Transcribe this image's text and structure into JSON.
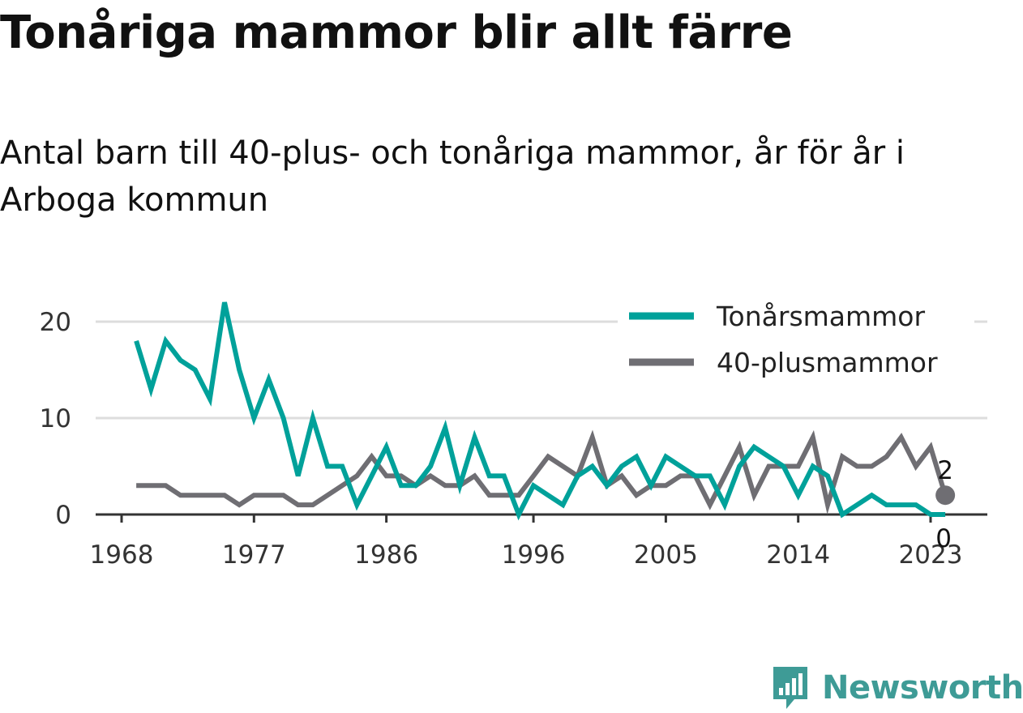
{
  "header": {
    "title": "Tonåriga mammor blir allt färre",
    "subtitle": "Antal barn till 40-plus- och tonåriga mammor, år för år i Arboga kommun"
  },
  "brand": {
    "name": "Newsworthy",
    "icon": "newsworthy-logo-icon",
    "color": "#3e9b96"
  },
  "chart_data": {
    "type": "line",
    "title": "Tonåriga mammor blir allt färre",
    "subtitle": "Antal barn till 40-plus- och tonåriga mammor, år för år i Arboga kommun",
    "xlabel": "",
    "ylabel": "",
    "xlim": [
      1967,
      2026
    ],
    "ylim": [
      0,
      22
    ],
    "x_ticks": [
      1968,
      1977,
      1986,
      1996,
      2005,
      2014,
      2023
    ],
    "y_ticks": [
      0,
      10,
      20
    ],
    "grid": true,
    "legend_position": "top-right",
    "x": [
      1969,
      1970,
      1971,
      1972,
      1973,
      1974,
      1975,
      1976,
      1977,
      1978,
      1979,
      1980,
      1981,
      1982,
      1983,
      1984,
      1985,
      1986,
      1987,
      1988,
      1989,
      1990,
      1991,
      1992,
      1993,
      1994,
      1995,
      1996,
      1997,
      1998,
      1999,
      2000,
      2001,
      2002,
      2003,
      2004,
      2005,
      2006,
      2007,
      2008,
      2009,
      2010,
      2011,
      2012,
      2013,
      2014,
      2015,
      2016,
      2017,
      2018,
      2019,
      2020,
      2021,
      2022,
      2023,
      2024
    ],
    "series": [
      {
        "name": "Tonårsmammor",
        "color": "#00a19a",
        "values": [
          18,
          13,
          18,
          16,
          15,
          12,
          22,
          15,
          10,
          14,
          10,
          4,
          10,
          5,
          5,
          1,
          4,
          7,
          3,
          3,
          5,
          9,
          3,
          8,
          4,
          4,
          0,
          3,
          2,
          1,
          4,
          5,
          3,
          5,
          6,
          3,
          6,
          5,
          4,
          4,
          1,
          5,
          7,
          6,
          5,
          2,
          5,
          4,
          0,
          1,
          2,
          1,
          1,
          1,
          0,
          0
        ],
        "end_label": "0"
      },
      {
        "name": "40-plusmammor",
        "color": "#6f6e73",
        "values": [
          3,
          3,
          3,
          2,
          2,
          2,
          2,
          1,
          2,
          2,
          2,
          1,
          1,
          2,
          3,
          4,
          6,
          4,
          4,
          3,
          4,
          3,
          3,
          4,
          2,
          2,
          2,
          4,
          6,
          5,
          4,
          8,
          3,
          4,
          2,
          3,
          3,
          4,
          4,
          1,
          4,
          7,
          2,
          5,
          5,
          5,
          8,
          1,
          6,
          5,
          5,
          6,
          8,
          5,
          7,
          2
        ],
        "end_label": "2"
      }
    ]
  }
}
